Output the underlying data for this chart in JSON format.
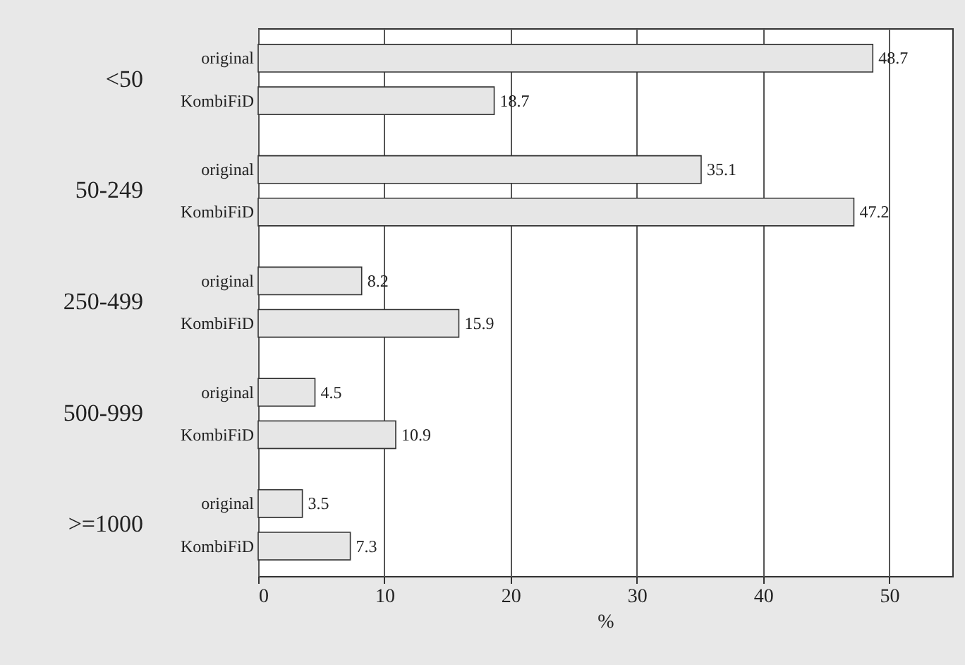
{
  "chart_data": {
    "type": "bar",
    "orientation": "horizontal",
    "xlabel": "%",
    "categories": [
      "<50",
      "50-249",
      "250-499",
      "500-999",
      ">=1000"
    ],
    "series": [
      {
        "name": "original",
        "color": "#e6e6e6",
        "values": [
          48.7,
          35.1,
          8.2,
          4.5,
          3.5
        ]
      },
      {
        "name": "KombiFiD",
        "color": "#e6e6e6",
        "values": [
          18.7,
          47.2,
          15.9,
          10.9,
          7.3
        ]
      }
    ],
    "xlim": [
      0,
      55
    ],
    "xticks": [
      0,
      10,
      20,
      30,
      40,
      50
    ],
    "grid": "x",
    "data_labels": true
  }
}
